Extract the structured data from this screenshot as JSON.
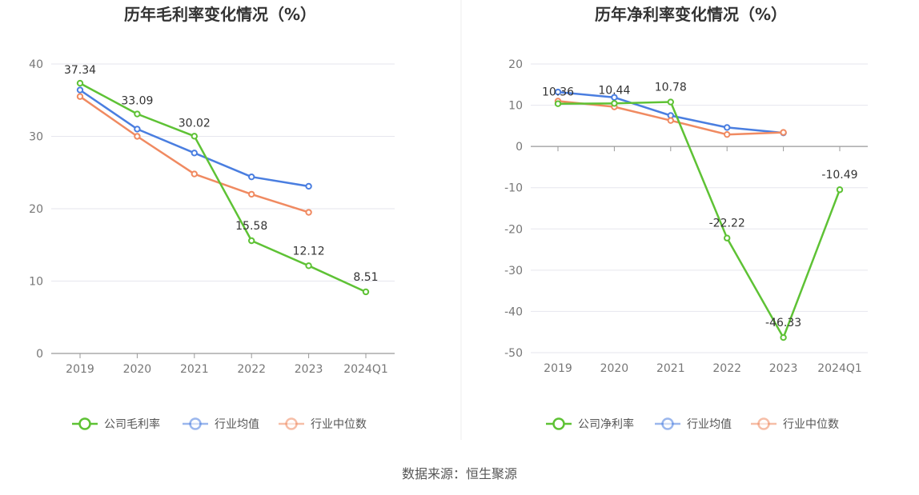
{
  "source": "数据来源：恒生聚源",
  "colors": {
    "company": "#5ec235",
    "industry_avg": "#4a7ee0",
    "industry_median": "#f08a61"
  },
  "chart_data": [
    {
      "type": "line",
      "title": "历年毛利率变化情况（%）",
      "categories": [
        "2019",
        "2020",
        "2021",
        "2022",
        "2023",
        "2024Q1"
      ],
      "ylim": [
        0,
        40
      ],
      "yticks": [
        0,
        10,
        20,
        30,
        40
      ],
      "grid": true,
      "legend_position": "bottom",
      "series": [
        {
          "name": "公司毛利率",
          "color_key": "company",
          "values": [
            37.34,
            33.09,
            30.02,
            15.58,
            12.12,
            8.51
          ],
          "labels": [
            "37.34",
            "33.09",
            "30.02",
            "15.58",
            "12.12",
            "8.51"
          ]
        },
        {
          "name": "行业均值",
          "color_key": "industry_avg",
          "values": [
            36.4,
            31.0,
            27.7,
            24.4,
            23.1,
            null
          ]
        },
        {
          "name": "行业中位数",
          "color_key": "industry_median",
          "values": [
            35.5,
            30.0,
            24.8,
            22.0,
            19.5,
            null
          ]
        }
      ]
    },
    {
      "type": "line",
      "title": "历年净利率变化情况（%）",
      "categories": [
        "2019",
        "2020",
        "2021",
        "2022",
        "2023",
        "2024Q1"
      ],
      "ylim": [
        -50,
        20
      ],
      "yticks": [
        -50,
        -40,
        -30,
        -20,
        -10,
        0,
        10,
        20
      ],
      "grid": true,
      "legend_position": "bottom",
      "series": [
        {
          "name": "公司净利率",
          "color_key": "company",
          "values": [
            10.36,
            10.44,
            10.78,
            -22.22,
            -46.33,
            -10.49
          ],
          "labels": [
            "10.36",
            "10.44",
            "10.78",
            "-22.22",
            "-46.33",
            "-10.49"
          ]
        },
        {
          "name": "行业均值",
          "color_key": "industry_avg",
          "values": [
            13.2,
            11.9,
            7.5,
            4.6,
            3.3,
            null
          ]
        },
        {
          "name": "行业中位数",
          "color_key": "industry_median",
          "values": [
            11.0,
            9.6,
            6.3,
            2.9,
            3.4,
            null
          ]
        }
      ]
    }
  ]
}
